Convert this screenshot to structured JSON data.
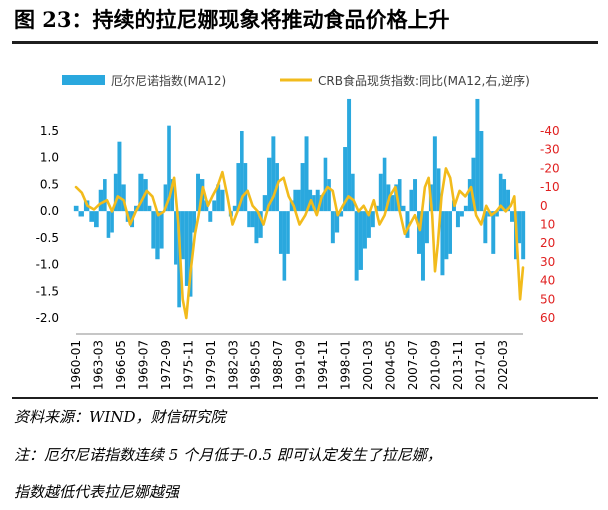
{
  "figure": {
    "title": "图 23：持续的拉尼娜现象将推动食品价格上升",
    "source": "资料来源：WIND，财信研究院",
    "note_line1": "注：厄尔尼诺指数连续 5 个月低于-0.5 即可认定发生了拉尼娜，",
    "note_line2": "指数越低代表拉尼娜越强"
  },
  "colors": {
    "bars": "#2aa8de",
    "line": "#f2bb1c",
    "left_axis": "#000000",
    "right_axis": "#e02020"
  },
  "chart_data": {
    "type": "bar+line",
    "legend": {
      "position": "top",
      "bar_label": "厄尔尼诺指数(MA12)",
      "line_label": "CRB食品现货指数:同比(MA12,右,逆序)"
    },
    "x_ticks": [
      "1960-01",
      "1963-03",
      "1966-05",
      "1969-07",
      "1972-09",
      "1975-11",
      "1979-01",
      "1982-03",
      "1985-05",
      "1988-07",
      "1991-09",
      "1994-11",
      "1998-01",
      "2001-03",
      "2004-05",
      "2007-07",
      "2010-09",
      "2013-11",
      "2017-01",
      "2020-03"
    ],
    "x_range": [
      1960.0,
      2022.0
    ],
    "left_axis": {
      "ylim": [
        -2.0,
        1.5
      ],
      "ticks": [
        1.5,
        1.0,
        0.5,
        0.0,
        -0.5,
        -1.0,
        -1.5,
        -2.0
      ],
      "tick_labels": [
        "1.5",
        "1.0",
        "0.5",
        "0.0",
        "-0.5",
        "-1.0",
        "-1.5",
        "-2.0"
      ]
    },
    "right_axis": {
      "inverted": true,
      "ylim": [
        -40,
        60
      ],
      "ticks": [
        -40,
        -30,
        -20,
        -10,
        0,
        10,
        20,
        30,
        40,
        50,
        60
      ],
      "tick_labels": [
        "-40",
        "-30",
        "-20",
        "-10",
        "0",
        "10",
        "20",
        "30",
        "40",
        "50",
        "60"
      ]
    },
    "series": [
      {
        "name": "厄尔尼诺指数(MA12)",
        "type": "bar",
        "points": [
          [
            1960.0,
            0.1
          ],
          [
            1960.7,
            -0.1
          ],
          [
            1961.5,
            0.2
          ],
          [
            1962.2,
            -0.2
          ],
          [
            1962.8,
            -0.3
          ],
          [
            1963.5,
            0.4
          ],
          [
            1964.0,
            0.6
          ],
          [
            1964.5,
            -0.5
          ],
          [
            1965.0,
            -0.4
          ],
          [
            1965.5,
            0.7
          ],
          [
            1966.0,
            1.3
          ],
          [
            1966.6,
            0.5
          ],
          [
            1967.2,
            -0.2
          ],
          [
            1967.8,
            -0.3
          ],
          [
            1968.3,
            0.1
          ],
          [
            1969.0,
            0.7
          ],
          [
            1969.7,
            0.6
          ],
          [
            1970.2,
            0.1
          ],
          [
            1970.7,
            -0.7
          ],
          [
            1971.3,
            -0.9
          ],
          [
            1971.9,
            -0.7
          ],
          [
            1972.4,
            0.5
          ],
          [
            1972.9,
            1.6
          ],
          [
            1973.4,
            0.6
          ],
          [
            1973.8,
            -1.0
          ],
          [
            1974.3,
            -1.8
          ],
          [
            1974.8,
            -0.9
          ],
          [
            1975.4,
            -1.4
          ],
          [
            1975.9,
            -1.6
          ],
          [
            1976.4,
            -0.4
          ],
          [
            1976.9,
            0.7
          ],
          [
            1977.5,
            0.6
          ],
          [
            1978.1,
            0.2
          ],
          [
            1978.6,
            -0.2
          ],
          [
            1979.2,
            0.2
          ],
          [
            1979.7,
            0.5
          ],
          [
            1980.3,
            0.4
          ],
          [
            1980.9,
            0.0
          ],
          [
            1981.5,
            -0.1
          ],
          [
            1982.0,
            0.1
          ],
          [
            1982.5,
            0.9
          ],
          [
            1983.0,
            1.5
          ],
          [
            1983.5,
            0.9
          ],
          [
            1984.0,
            -0.3
          ],
          [
            1984.5,
            -0.3
          ],
          [
            1985.0,
            -0.6
          ],
          [
            1985.6,
            -0.5
          ],
          [
            1986.2,
            0.3
          ],
          [
            1986.8,
            1.0
          ],
          [
            1987.4,
            1.4
          ],
          [
            1987.9,
            0.9
          ],
          [
            1988.4,
            -0.8
          ],
          [
            1988.9,
            -1.3
          ],
          [
            1989.4,
            -0.8
          ],
          [
            1989.9,
            0.2
          ],
          [
            1990.4,
            0.4
          ],
          [
            1990.9,
            0.4
          ],
          [
            1991.4,
            0.9
          ],
          [
            1992.0,
            1.4
          ],
          [
            1992.5,
            0.4
          ],
          [
            1993.0,
            0.3
          ],
          [
            1993.5,
            0.4
          ],
          [
            1994.1,
            0.3
          ],
          [
            1994.6,
            1.0
          ],
          [
            1995.1,
            0.6
          ],
          [
            1995.6,
            -0.6
          ],
          [
            1996.2,
            -0.4
          ],
          [
            1996.8,
            -0.1
          ],
          [
            1997.3,
            1.2
          ],
          [
            1997.9,
            2.1
          ],
          [
            1998.4,
            0.7
          ],
          [
            1998.9,
            -1.3
          ],
          [
            1999.5,
            -1.1
          ],
          [
            2000.1,
            -0.7
          ],
          [
            2000.6,
            -0.5
          ],
          [
            2001.2,
            -0.3
          ],
          [
            2001.7,
            0.1
          ],
          [
            2002.3,
            0.7
          ],
          [
            2002.8,
            1.0
          ],
          [
            2003.3,
            0.5
          ],
          [
            2003.9,
            0.3
          ],
          [
            2004.4,
            0.5
          ],
          [
            2004.9,
            0.6
          ],
          [
            2005.4,
            0.1
          ],
          [
            2006.0,
            -0.5
          ],
          [
            2006.5,
            0.4
          ],
          [
            2007.0,
            0.6
          ],
          [
            2007.6,
            -0.8
          ],
          [
            2008.1,
            -1.3
          ],
          [
            2008.7,
            -0.6
          ],
          [
            2009.2,
            0.5
          ],
          [
            2009.8,
            1.4
          ],
          [
            2010.3,
            0.8
          ],
          [
            2010.8,
            -1.2
          ],
          [
            2011.4,
            -0.9
          ],
          [
            2011.9,
            -0.8
          ],
          [
            2012.4,
            0.2
          ],
          [
            2013.0,
            -0.3
          ],
          [
            2013.5,
            -0.1
          ],
          [
            2014.1,
            0.1
          ],
          [
            2014.6,
            0.6
          ],
          [
            2015.1,
            1.0
          ],
          [
            2015.7,
            2.1
          ],
          [
            2016.2,
            1.5
          ],
          [
            2016.8,
            -0.6
          ],
          [
            2017.3,
            -0.1
          ],
          [
            2017.9,
            -0.8
          ],
          [
            2018.4,
            -0.1
          ],
          [
            2018.9,
            0.7
          ],
          [
            2019.4,
            0.6
          ],
          [
            2019.9,
            0.4
          ],
          [
            2020.5,
            -0.2
          ],
          [
            2021.0,
            -0.9
          ],
          [
            2021.5,
            -0.6
          ],
          [
            2022.0,
            -0.9
          ]
        ]
      },
      {
        "name": "CRB食品现货指数:同比(MA12,右,逆序)",
        "type": "line",
        "axis": "right",
        "points": [
          [
            1960.0,
            -10
          ],
          [
            1960.8,
            -7
          ],
          [
            1961.6,
            0
          ],
          [
            1962.5,
            2
          ],
          [
            1963.3,
            -1
          ],
          [
            1964.3,
            -3
          ],
          [
            1965.0,
            3
          ],
          [
            1965.8,
            -5
          ],
          [
            1966.6,
            -3
          ],
          [
            1967.5,
            10
          ],
          [
            1968.3,
            3
          ],
          [
            1969.0,
            -2
          ],
          [
            1969.8,
            -8
          ],
          [
            1970.6,
            -5
          ],
          [
            1971.4,
            5
          ],
          [
            1972.2,
            3
          ],
          [
            1973.0,
            -5
          ],
          [
            1973.6,
            -15
          ],
          [
            1974.2,
            10
          ],
          [
            1974.8,
            50
          ],
          [
            1975.3,
            60
          ],
          [
            1975.9,
            35
          ],
          [
            1976.5,
            15
          ],
          [
            1977.0,
            5
          ],
          [
            1977.6,
            -10
          ],
          [
            1978.3,
            0
          ],
          [
            1978.9,
            -5
          ],
          [
            1979.6,
            -10
          ],
          [
            1980.3,
            -18
          ],
          [
            1981.0,
            -5
          ],
          [
            1981.7,
            10
          ],
          [
            1982.4,
            3
          ],
          [
            1983.1,
            -5
          ],
          [
            1983.8,
            -8
          ],
          [
            1984.5,
            0
          ],
          [
            1985.2,
            3
          ],
          [
            1986.0,
            10
          ],
          [
            1986.7,
            0
          ],
          [
            1987.4,
            -5
          ],
          [
            1988.1,
            -13
          ],
          [
            1988.8,
            -15
          ],
          [
            1989.5,
            -5
          ],
          [
            1990.2,
            0
          ],
          [
            1991.0,
            10
          ],
          [
            1991.8,
            5
          ],
          [
            1992.6,
            -3
          ],
          [
            1993.4,
            5
          ],
          [
            1994.1,
            -5
          ],
          [
            1994.9,
            -10
          ],
          [
            1995.6,
            -8
          ],
          [
            1996.3,
            5
          ],
          [
            1997.0,
            0
          ],
          [
            1997.8,
            -5
          ],
          [
            1998.5,
            -3
          ],
          [
            1999.2,
            3
          ],
          [
            1999.9,
            0
          ],
          [
            2000.6,
            5
          ],
          [
            2001.3,
            -3
          ],
          [
            2002.1,
            10
          ],
          [
            2002.8,
            5
          ],
          [
            2003.5,
            -5
          ],
          [
            2004.3,
            -10
          ],
          [
            2004.9,
            3
          ],
          [
            2005.6,
            15
          ],
          [
            2006.3,
            10
          ],
          [
            2007.0,
            5
          ],
          [
            2007.7,
            13
          ],
          [
            2008.4,
            -10
          ],
          [
            2008.9,
            -15
          ],
          [
            2009.4,
            5
          ],
          [
            2009.8,
            35
          ],
          [
            2010.2,
            20
          ],
          [
            2010.7,
            -5
          ],
          [
            2011.3,
            -20
          ],
          [
            2011.9,
            -15
          ],
          [
            2012.5,
            0
          ],
          [
            2013.2,
            -8
          ],
          [
            2014.0,
            -5
          ],
          [
            2014.8,
            -10
          ],
          [
            2015.5,
            5
          ],
          [
            2016.2,
            10
          ],
          [
            2016.9,
            0
          ],
          [
            2017.6,
            5
          ],
          [
            2018.3,
            3
          ],
          [
            2018.9,
            0
          ],
          [
            2019.6,
            3
          ],
          [
            2020.3,
            0
          ],
          [
            2020.8,
            -5
          ],
          [
            2021.3,
            30
          ],
          [
            2021.6,
            50
          ],
          [
            2022.0,
            33
          ]
        ]
      }
    ]
  }
}
